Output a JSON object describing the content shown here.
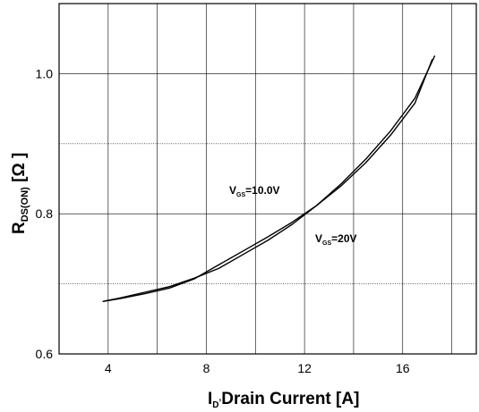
{
  "chart_data": {
    "type": "line",
    "xlim": [
      2,
      19
    ],
    "ylim": [
      0.6,
      1.1
    ],
    "x_ticks": [
      4,
      8,
      12,
      16
    ],
    "x_tick_labels": [
      "4",
      "8",
      "12",
      "16"
    ],
    "y_ticks": [
      0.6,
      0.8,
      1.0
    ],
    "y_tick_labels": [
      "0.6",
      "0.8",
      "1.0"
    ],
    "grid": true,
    "xlabel": {
      "main": "I",
      "sub": "D",
      "sep": ",",
      "rest": "Drain Current [A]"
    },
    "ylabel": {
      "main": "R",
      "sub": "DS(ON)",
      "rest": " [Ω ]"
    },
    "series": [
      {
        "annotation": {
          "main": "V",
          "sub": "GS",
          "rest": "=10.0V"
        },
        "x": [
          3.8,
          4.5,
          5.5,
          6.5,
          7.5,
          8.5,
          9.5,
          10.5,
          11.5,
          12.5,
          13.5,
          14.5,
          15.5,
          16.5,
          17.3
        ],
        "y": [
          0.675,
          0.68,
          0.688,
          0.696,
          0.708,
          0.722,
          0.742,
          0.762,
          0.785,
          0.812,
          0.843,
          0.878,
          0.918,
          0.965,
          1.025
        ]
      },
      {
        "annotation": {
          "main": "V",
          "sub": "GS",
          "rest": "=20V"
        },
        "x": [
          3.8,
          4.5,
          5.5,
          6.5,
          7.5,
          8.5,
          9.5,
          10.5,
          11.5,
          12.5,
          13.5,
          14.5,
          15.5,
          16.5,
          17.2
        ],
        "y": [
          0.675,
          0.679,
          0.686,
          0.694,
          0.707,
          0.727,
          0.747,
          0.767,
          0.788,
          0.812,
          0.84,
          0.873,
          0.912,
          0.958,
          1.02
        ]
      }
    ]
  }
}
